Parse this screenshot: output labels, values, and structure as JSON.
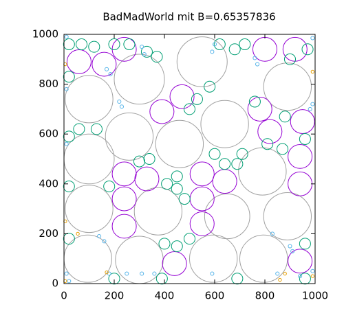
{
  "chart_data": {
    "type": "bubble",
    "title": "BadMadWorld mit B=0.65357836",
    "xlim": [
      0,
      1000
    ],
    "ylim": [
      0,
      1000
    ],
    "xticks": [
      0,
      200,
      400,
      600,
      800,
      1000
    ],
    "yticks": [
      0,
      200,
      400,
      600,
      800,
      1000
    ],
    "series": [
      {
        "color": "#a0a0a0",
        "x": [
          95,
          300,
          595,
          795,
          100,
          375,
          650,
          890,
          100,
          260,
          460,
          640,
          790,
          100,
          300,
          550,
          890
        ],
        "y": [
          100,
          95,
          100,
          100,
          300,
          290,
          270,
          270,
          500,
          590,
          560,
          640,
          450,
          740,
          820,
          890,
          790
        ],
        "r": [
          95,
          95,
          95,
          95,
          95,
          95,
          90,
          95,
          100,
          95,
          95,
          95,
          95,
          95,
          100,
          100,
          95
        ]
      },
      {
        "color": "#9400d3",
        "x": [
          60,
          160,
          240,
          800,
          920,
          470,
          390,
          780,
          820,
          950,
          940,
          940,
          240,
          330,
          550,
          640,
          240,
          550,
          240,
          550,
          440,
          940
        ],
        "y": [
          890,
          880,
          940,
          940,
          940,
          750,
          690,
          700,
          610,
          650,
          510,
          400,
          440,
          420,
          440,
          410,
          340,
          340,
          230,
          240,
          80,
          90
        ],
        "r": [
          48,
          48,
          48,
          48,
          48,
          48,
          48,
          48,
          48,
          48,
          48,
          48,
          48,
          48,
          48,
          48,
          48,
          48,
          48,
          48,
          48,
          48
        ]
      },
      {
        "color": "#009e73",
        "x": [
          20,
          70,
          120,
          200,
          260,
          330,
          370,
          620,
          680,
          720,
          970,
          20,
          60,
          130,
          580,
          530,
          500,
          760,
          810,
          870,
          880,
          960,
          20,
          600,
          640,
          690,
          710,
          300,
          340,
          410,
          450,
          450,
          480,
          20,
          180,
          400,
          450,
          500,
          20,
          200,
          390,
          690,
          960,
          960,
          900
        ],
        "y": [
          960,
          960,
          950,
          960,
          960,
          930,
          910,
          960,
          940,
          960,
          940,
          830,
          620,
          620,
          790,
          740,
          700,
          730,
          560,
          540,
          670,
          580,
          590,
          520,
          480,
          480,
          520,
          490,
          500,
          400,
          430,
          380,
          340,
          390,
          390,
          160,
          150,
          180,
          180,
          20,
          20,
          20,
          20,
          160,
          900
        ],
        "r": [
          22,
          22,
          22,
          22,
          22,
          22,
          22,
          22,
          22,
          22,
          22,
          22,
          22,
          22,
          22,
          22,
          22,
          22,
          22,
          22,
          22,
          22,
          22,
          22,
          22,
          22,
          22,
          22,
          22,
          22,
          22,
          22,
          22,
          22,
          22,
          22,
          22,
          22,
          22,
          22,
          22,
          22,
          22,
          22,
          22
        ]
      },
      {
        "color": "#56b4e9",
        "x": [
          10,
          170,
          185,
          310,
          320,
          590,
          600,
          760,
          770,
          990,
          10,
          220,
          230,
          990,
          980,
          10,
          140,
          160,
          830,
          900,
          910,
          850,
          10,
          20,
          180,
          360,
          590,
          940,
          990,
          310,
          250
        ],
        "y": [
          990,
          860,
          840,
          950,
          920,
          930,
          960,
          905,
          880,
          985,
          780,
          730,
          710,
          720,
          700,
          560,
          190,
          170,
          200,
          150,
          130,
          40,
          40,
          10,
          40,
          40,
          40,
          30,
          50,
          40,
          40
        ],
        "r": [
          7,
          7,
          7,
          7,
          7,
          7,
          7,
          7,
          7,
          7,
          7,
          7,
          7,
          7,
          7,
          7,
          7,
          7,
          7,
          7,
          7,
          7,
          7,
          7,
          7,
          7,
          7,
          7,
          7,
          7,
          7
        ]
      },
      {
        "color": "#e69f00",
        "x": [
          5,
          990,
          5,
          55,
          170,
          880,
          990,
          860,
          5
        ],
        "y": [
          880,
          850,
          250,
          200,
          45,
          40,
          30,
          15,
          10
        ],
        "r": [
          6,
          6,
          6,
          6,
          6,
          6,
          6,
          6,
          6
        ]
      }
    ]
  }
}
